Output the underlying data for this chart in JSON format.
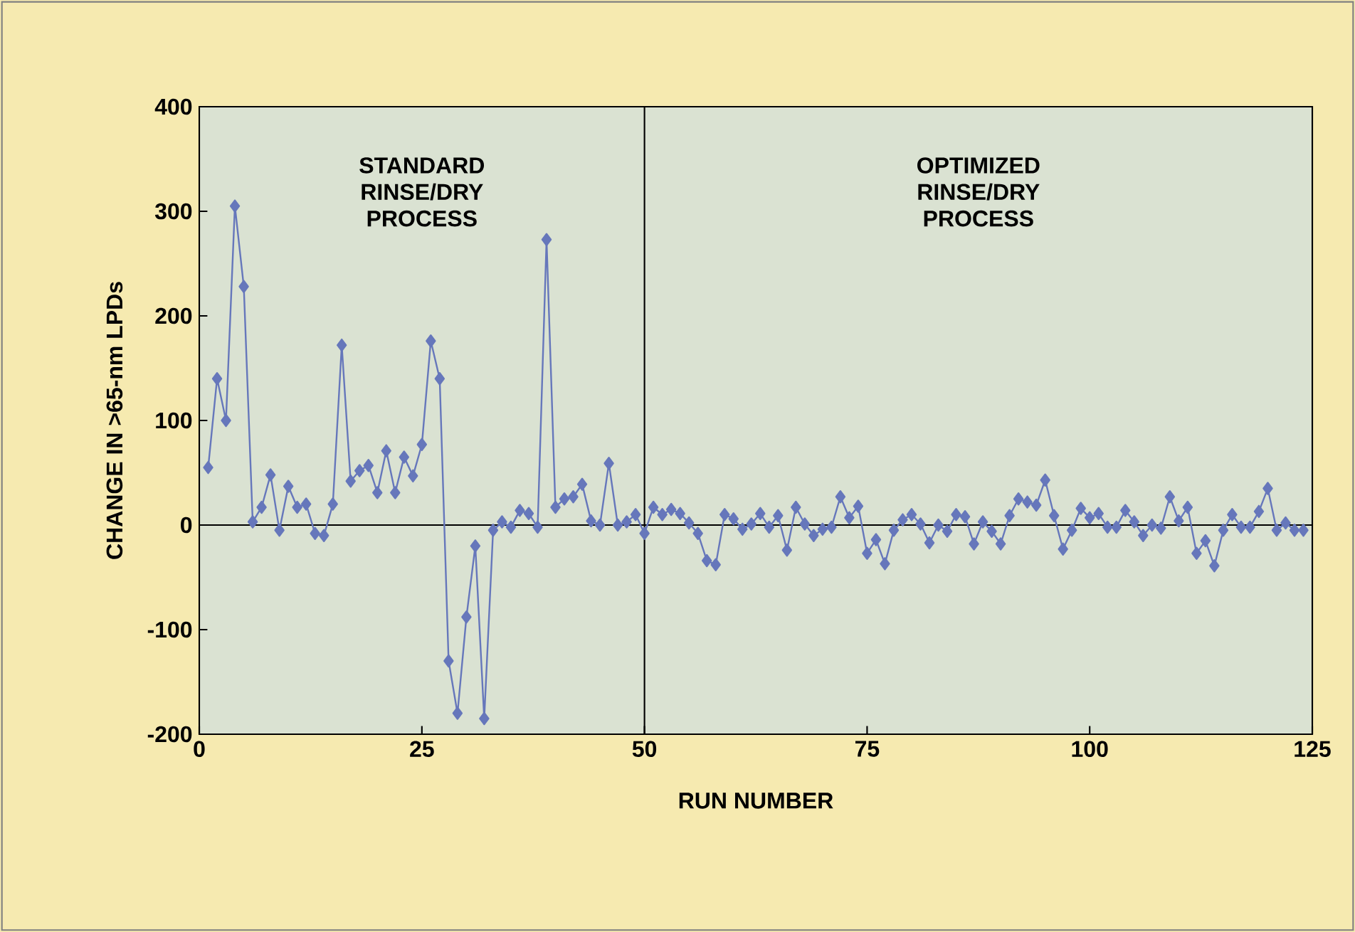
{
  "chart_data": {
    "type": "line",
    "xlabel": "RUN NUMBER",
    "ylabel": "CHANGE IN >65-nm LPDs",
    "x": [
      1,
      2,
      3,
      4,
      5,
      6,
      7,
      8,
      9,
      10,
      11,
      12,
      13,
      14,
      15,
      16,
      17,
      18,
      19,
      20,
      21,
      22,
      23,
      24,
      25,
      26,
      27,
      28,
      29,
      30,
      31,
      32,
      33,
      34,
      35,
      36,
      37,
      38,
      39,
      40,
      41,
      42,
      43,
      44,
      45,
      46,
      47,
      48,
      49,
      50,
      51,
      52,
      53,
      54,
      55,
      56,
      57,
      58,
      59,
      60,
      61,
      62,
      63,
      64,
      65,
      66,
      67,
      68,
      69,
      70,
      71,
      72,
      73,
      74,
      75,
      76,
      77,
      78,
      79,
      80,
      81,
      82,
      83,
      84,
      85,
      86,
      87,
      88,
      89,
      90,
      91,
      92,
      93,
      94,
      95,
      96,
      97,
      98,
      99,
      100,
      101,
      102,
      103,
      104,
      105,
      106,
      107,
      108,
      109,
      110,
      111,
      112,
      113,
      114,
      115,
      116,
      117,
      118,
      119,
      120,
      121,
      122,
      123,
      124
    ],
    "series": [
      {
        "color": "#6677bb",
        "values": [
          55,
          140,
          100,
          305,
          228,
          3,
          17,
          48,
          -5,
          37,
          17,
          20,
          -8,
          -10,
          20,
          172,
          42,
          52,
          57,
          31,
          71,
          31,
          65,
          47,
          77,
          176,
          140,
          -130,
          -180,
          -88,
          -20,
          -185,
          -5,
          3,
          -2,
          14,
          11,
          -2,
          273,
          17,
          25,
          27,
          39,
          4,
          0,
          59,
          0,
          3,
          10,
          -8,
          17,
          10,
          15,
          11,
          2,
          -8,
          -34,
          -38,
          10,
          6,
          -4,
          1,
          11,
          -2,
          9,
          -24,
          17,
          1,
          -10,
          -4,
          -2,
          27,
          7,
          18,
          -27,
          -14,
          -37,
          -5,
          5,
          10,
          1,
          -17,
          0,
          -6,
          10,
          8,
          -18,
          3,
          -6,
          -18,
          9,
          25,
          22,
          19,
          43,
          9,
          -23,
          -5,
          16,
          7,
          11,
          -2,
          -2,
          14,
          3,
          -10,
          0,
          -3,
          27,
          4,
          17,
          -27,
          -15,
          -39,
          -5,
          10,
          -2,
          -2,
          13,
          35,
          -5,
          2,
          -5,
          -5
        ]
      }
    ],
    "xlim": [
      0,
      125
    ],
    "xticks": [
      0,
      25,
      50,
      75,
      100,
      125
    ],
    "ylim": [
      -200,
      400
    ],
    "yticks": [
      -200,
      -100,
      0,
      100,
      200,
      300,
      400
    ],
    "marker": "diamond",
    "grid": false,
    "ref_lines": [
      {
        "axis": "y",
        "value": 0,
        "color": "#000000"
      },
      {
        "axis": "x",
        "value": 50,
        "color": "#000000"
      }
    ],
    "annotations": [
      "STANDARD RINSE/DRY PROCESS",
      "OPTIMIZED RINSE/DRY PROCESS"
    ]
  }
}
